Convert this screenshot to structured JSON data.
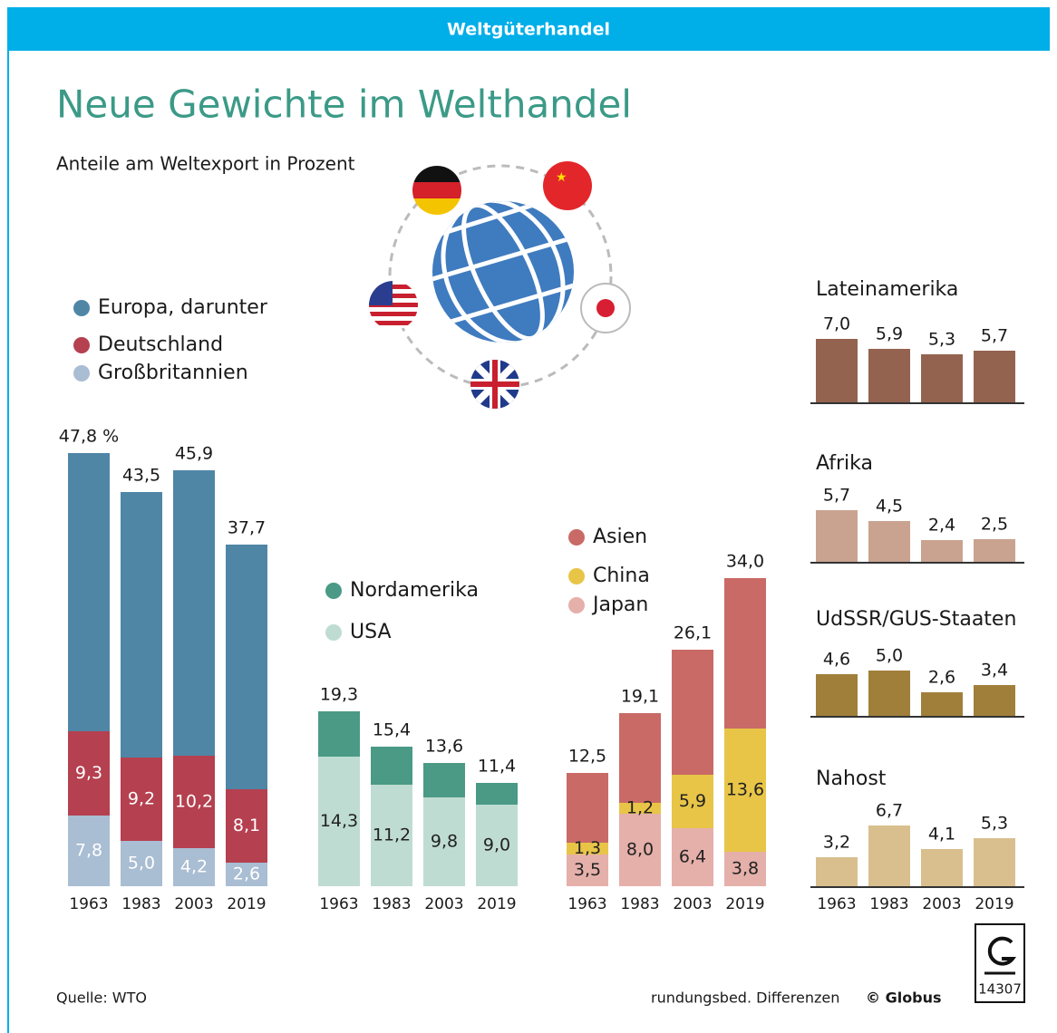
{
  "page": {
    "banner": "Weltgüterhandel",
    "title": "Neue Gewichte im Welthandel",
    "subtitle": "Anteile am Weltexport in Prozent",
    "source": "Quelle: WTO",
    "note": "rundungsbed. Differenzen",
    "credit": "© Globus",
    "logo": "14307"
  },
  "chart_data": [
    {
      "type": "nested-bar",
      "categories": [
        "1963",
        "1983",
        "2003",
        "2019"
      ],
      "series": [
        {
          "name": "Europa, darunter",
          "color": "#4f86a6",
          "values": [
            47.8,
            43.5,
            45.9,
            37.7
          ],
          "value_labels": [
            "47,8 %",
            "43,5",
            "45,9",
            "37,7"
          ]
        },
        {
          "name": "Deutschland",
          "color": "#b5404f",
          "values": [
            9.3,
            9.2,
            10.2,
            8.1
          ],
          "value_labels": [
            "9,3",
            "9,2",
            "10,2",
            "8,1"
          ]
        },
        {
          "name": "Großbritannien",
          "color": "#a9bdd3",
          "values": [
            7.8,
            5.0,
            4.2,
            2.6
          ],
          "value_labels": [
            "7,8",
            "5,0",
            "4,2",
            "2,6"
          ]
        }
      ]
    },
    {
      "type": "nested-bar",
      "categories": [
        "1963",
        "1983",
        "2003",
        "2019"
      ],
      "series": [
        {
          "name": "Nordamerika",
          "color": "#4a9a86",
          "values": [
            19.3,
            15.4,
            13.6,
            11.4
          ],
          "value_labels": [
            "19,3",
            "15,4",
            "13,6",
            "11,4"
          ]
        },
        {
          "name": "USA",
          "color": "#bfdcd3",
          "values": [
            14.3,
            11.2,
            9.8,
            9.0
          ],
          "value_labels": [
            "14,3",
            "11,2",
            "9,8",
            "9,0"
          ]
        }
      ]
    },
    {
      "type": "nested-bar",
      "categories": [
        "1963",
        "1983",
        "2003",
        "2019"
      ],
      "series": [
        {
          "name": "Asien",
          "color": "#c96a66",
          "values": [
            12.5,
            19.1,
            26.1,
            34.0
          ],
          "value_labels": [
            "12,5",
            "19,1",
            "26,1",
            "34,0"
          ]
        },
        {
          "name": "China",
          "color": "#e8c547",
          "values": [
            1.3,
            1.2,
            5.9,
            13.6
          ],
          "value_labels": [
            "1,3",
            "1,2",
            "5,9",
            "13,6"
          ]
        },
        {
          "name": "Japan",
          "color": "#e5b0aa",
          "values": [
            3.5,
            8.0,
            6.4,
            3.8
          ],
          "value_labels": [
            "3,5",
            "8,0",
            "6,4",
            "3,8"
          ]
        }
      ]
    },
    {
      "type": "small-multiples",
      "categories": [
        "1963",
        "1983",
        "2003",
        "2019"
      ],
      "series": [
        {
          "name": "Lateinamerika",
          "color": "#946350",
          "values": [
            7.0,
            5.9,
            5.3,
            5.7
          ],
          "value_labels": [
            "7,0",
            "5,9",
            "5,3",
            "5,7"
          ]
        },
        {
          "name": "Afrika",
          "color": "#c9a390",
          "values": [
            5.7,
            4.5,
            2.4,
            2.5
          ],
          "value_labels": [
            "5,7",
            "4,5",
            "2,4",
            "2,5"
          ]
        },
        {
          "name": "UdSSR/GUS-Staaten",
          "color": "#a07f3a",
          "values": [
            4.6,
            5.0,
            2.6,
            3.4
          ],
          "value_labels": [
            "4,6",
            "5,0",
            "2,6",
            "3,4"
          ]
        },
        {
          "name": "Nahost",
          "color": "#d9bf8e",
          "values": [
            3.2,
            6.7,
            4.1,
            5.3
          ],
          "value_labels": [
            "3,2",
            "6,7",
            "4,1",
            "5,3"
          ]
        }
      ]
    }
  ]
}
